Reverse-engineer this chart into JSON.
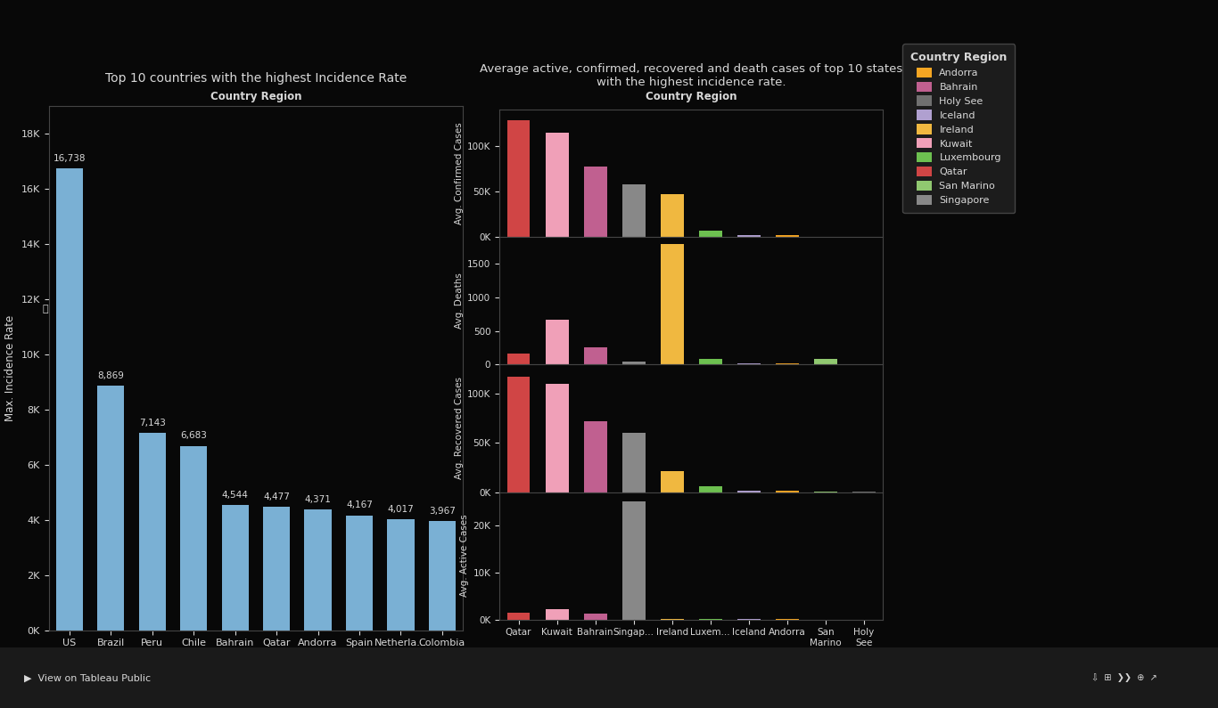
{
  "background_color": "#080808",
  "left_chart": {
    "title": "Top 10 countries with the highest Incidence Rate",
    "subtitle": "Country Region",
    "ylabel": "Max. Incidence Rate",
    "categories": [
      "US",
      "Brazil",
      "Peru",
      "Chile",
      "Bahrain",
      "Qatar",
      "Andorra",
      "Spain",
      "Netherla...",
      "Colombia"
    ],
    "values": [
      16738,
      8869,
      7143,
      6683,
      4544,
      4477,
      4371,
      4167,
      4017,
      3967
    ],
    "bar_color": "#7ab0d4",
    "yticks": [
      0,
      2000,
      4000,
      6000,
      8000,
      10000,
      12000,
      14000,
      16000,
      18000
    ],
    "ytick_labels": [
      "0K",
      "2K",
      "4K",
      "6K",
      "8K",
      "10K",
      "12K",
      "14K",
      "16K",
      "18K"
    ],
    "ylim": [
      0,
      19000
    ]
  },
  "right_chart": {
    "title": "Average active, confirmed, recovered and death cases of top 10 states\nwith the highest incidence rate.",
    "subtitle": "Country Region",
    "categories": [
      "Qatar",
      "Kuwait",
      "Bahrain",
      "Singap...",
      "Ireland",
      "Luxem...",
      "Iceland",
      "Andorra",
      "San\nMarino",
      "Holy\nSee"
    ],
    "bar_colors_per_country": [
      "#d04545",
      "#f0a0b8",
      "#c06090",
      "#888888",
      "#f0b840",
      "#6dc050",
      "#b0a0d0",
      "#f5a623",
      "#90c870",
      "#707070"
    ],
    "subplots": {
      "confirmed": {
        "ylabel": "Avg. Confirmed Cases",
        "values": [
          128000,
          115000,
          78000,
          58000,
          47000,
          7000,
          2500,
          2000,
          500,
          150
        ],
        "yticks": [
          0,
          50000,
          100000
        ],
        "ytick_labels": [
          "0K",
          "50K",
          "100K"
        ],
        "ylim": [
          0,
          140000
        ]
      },
      "deaths": {
        "ylabel": "Avg. Deaths",
        "values": [
          170,
          670,
          260,
          50,
          1800,
          90,
          15,
          25,
          85,
          8
        ],
        "yticks": [
          0,
          500,
          1000,
          1500
        ],
        "ytick_labels": [
          "0",
          "500",
          "1000",
          "1500"
        ],
        "ylim": [
          0,
          1900
        ]
      },
      "recovered": {
        "ylabel": "Avg. Recovered Cases",
        "values": [
          118000,
          110000,
          72000,
          60000,
          21000,
          6000,
          1600,
          1400,
          380,
          150
        ],
        "yticks": [
          0,
          50000,
          100000
        ],
        "ytick_labels": [
          "0K",
          "50K",
          "100K"
        ],
        "ylim": [
          0,
          130000
        ]
      },
      "active": {
        "ylabel": "Avg. Active Cases",
        "values": [
          1500,
          2200,
          1300,
          25000,
          200,
          80,
          30,
          30,
          15,
          5
        ],
        "yticks": [
          0,
          10000,
          20000
        ],
        "ytick_labels": [
          "0K",
          "10K",
          "20K"
        ],
        "ylim": [
          0,
          27000
        ]
      }
    }
  },
  "legend": {
    "title": "Country Region",
    "entries": [
      "Andorra",
      "Bahrain",
      "Holy See",
      "Iceland",
      "Ireland",
      "Kuwait",
      "Luxembourg",
      "Qatar",
      "San Marino",
      "Singapore"
    ],
    "colors": [
      "#f5a623",
      "#c06090",
      "#707070",
      "#b0a0d0",
      "#f0b840",
      "#f0a0b8",
      "#6dc050",
      "#d04545",
      "#90c870",
      "#888888"
    ]
  },
  "text_color": "#d8d8d8",
  "axis_color": "#444444",
  "separator_color": "#888888",
  "toolbar_color": "#1a1a1a"
}
